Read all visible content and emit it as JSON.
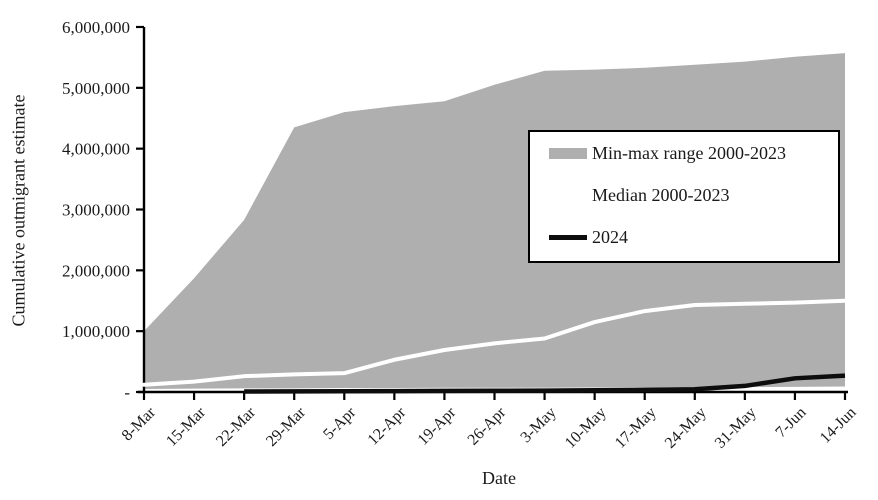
{
  "chart_data": {
    "type": "area",
    "x": [
      "8-Mar",
      "15-Mar",
      "22-Mar",
      "29-Mar",
      "5-Apr",
      "12-Apr",
      "19-Apr",
      "26-Apr",
      "3-May",
      "10-May",
      "17-May",
      "24-May",
      "31-May",
      "7-Jun",
      "14-Jun"
    ],
    "series": [
      {
        "name": "Min-max range 2000-2023",
        "role": "band",
        "max": [
          1000000,
          1870000,
          2830000,
          4350000,
          4600000,
          4700000,
          4780000,
          5050000,
          5280000,
          5300000,
          5330000,
          5380000,
          5430000,
          5510000,
          5570000
        ],
        "min": [
          50000,
          55000,
          60000,
          60000,
          65000,
          65000,
          70000,
          70000,
          70000,
          75000,
          75000,
          80000,
          80000,
          85000,
          90000
        ],
        "color": "#afafaf"
      },
      {
        "name": "Median 2000-2023",
        "role": "line",
        "values": [
          120000,
          170000,
          260000,
          290000,
          310000,
          530000,
          690000,
          800000,
          880000,
          1150000,
          1330000,
          1430000,
          1450000,
          1470000,
          1500000
        ],
        "color": "#ffffff"
      },
      {
        "name": "2024",
        "role": "line",
        "values": [
          null,
          null,
          8000,
          10000,
          12000,
          15000,
          18000,
          20000,
          22000,
          28000,
          35000,
          45000,
          100000,
          225000,
          270000
        ],
        "color": "#0d0d0d"
      }
    ],
    "title": "",
    "xlabel": "Date",
    "ylabel": "Cumulative outmigrant estimate",
    "ylim": [
      0,
      6000000
    ],
    "ytick_step": 1000000,
    "ytick_labels": [
      "-",
      "1,000,000",
      "2,000,000",
      "3,000,000",
      "4,000,000",
      "5,000,000",
      "6,000,000"
    ],
    "grid": false,
    "legend_position": "inside-upper-right",
    "axis_color": "#000000"
  }
}
